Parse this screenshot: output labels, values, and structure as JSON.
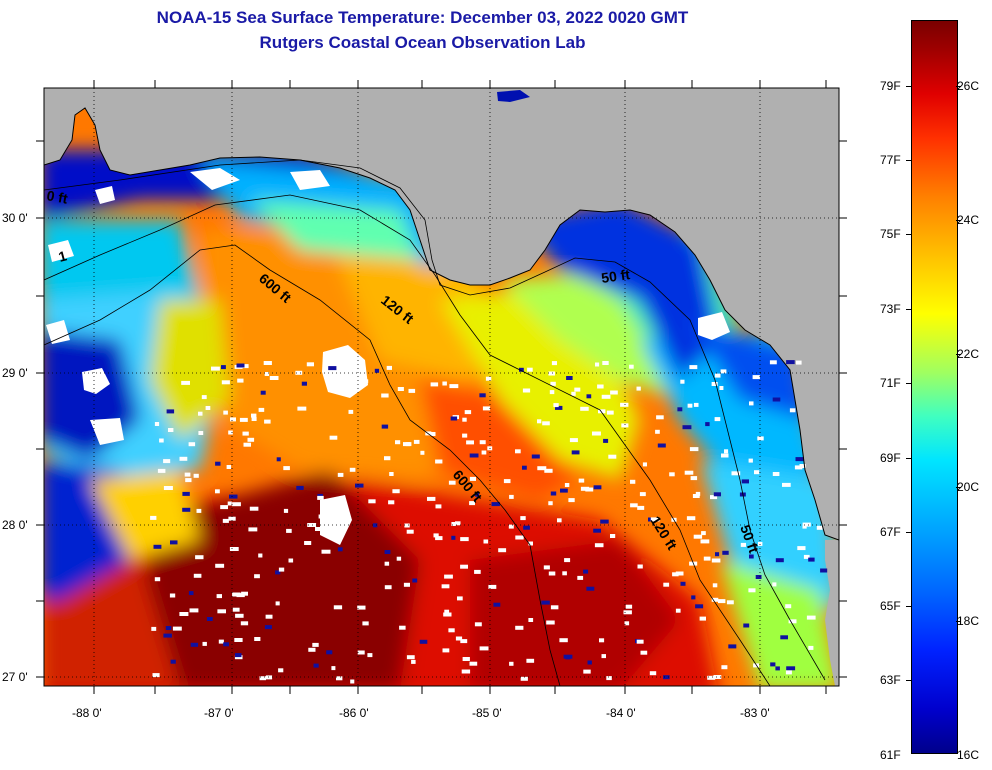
{
  "header": {
    "title": "NOAA-15 Sea Surface Temperature:  December 03, 2022 0020 GMT",
    "subtitle": "Rutgers Coastal Ocean Observation Lab"
  },
  "map": {
    "lat_labels": [
      "30 0'",
      "29 0'",
      "28 0'",
      "27 0'"
    ],
    "lon_labels": [
      "-88 0'",
      "-87 0'",
      "-86 0'",
      "-85 0'",
      "-84 0'",
      "-83 0'"
    ],
    "contour_labels": [
      "600 ft",
      "120 ft",
      "50 ft",
      "600 ft",
      "120 ft",
      "50 ft",
      "0 ft",
      "1"
    ],
    "colors": {
      "land": "#b0b0b0",
      "cloud": "#ffffff",
      "coastline": "#000000"
    }
  },
  "colorbar": {
    "f_labels": [
      "79F",
      "77F",
      "75F",
      "73F",
      "71F",
      "69F",
      "67F",
      "65F",
      "63F",
      "61F"
    ],
    "c_labels": [
      "26C",
      "24C",
      "22C",
      "20C",
      "18C",
      "16C"
    ]
  }
}
